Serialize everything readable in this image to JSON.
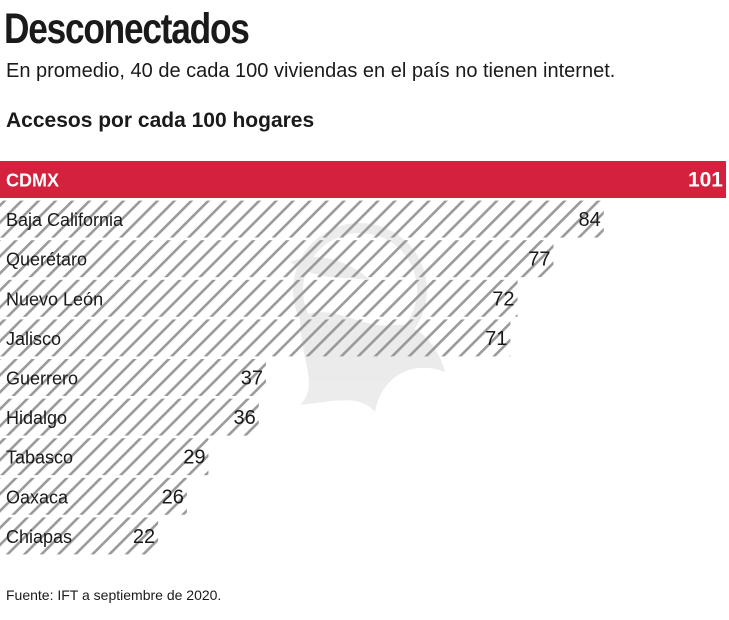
{
  "title": "Desconectados",
  "subtitle": "En promedio, 40 de cada 100 viviendas en  el país no tienen internet.",
  "section_title": "Accesos por cada 100 hogares",
  "source": "Fuente: IFT a septiembre de 2020.",
  "colors": {
    "highlight": "#d4213d",
    "hatch": "#9a9a9a",
    "text": "#1a1a1a"
  },
  "chart_data": {
    "type": "bar",
    "orientation": "horizontal",
    "title": "Accesos por cada 100 hogares",
    "categories": [
      "CDMX",
      "Baja California",
      "Querétaro",
      "Nuevo León",
      "Jalisco",
      "Guerrero",
      "Hidalgo",
      "Tabasco",
      "Oaxaca",
      "Chiapas"
    ],
    "values": [
      101,
      84,
      77,
      72,
      71,
      37,
      36,
      29,
      26,
      22
    ],
    "highlighted": [
      "CDMX"
    ],
    "xlim": [
      0,
      101
    ],
    "grid": false,
    "legend": "none"
  }
}
